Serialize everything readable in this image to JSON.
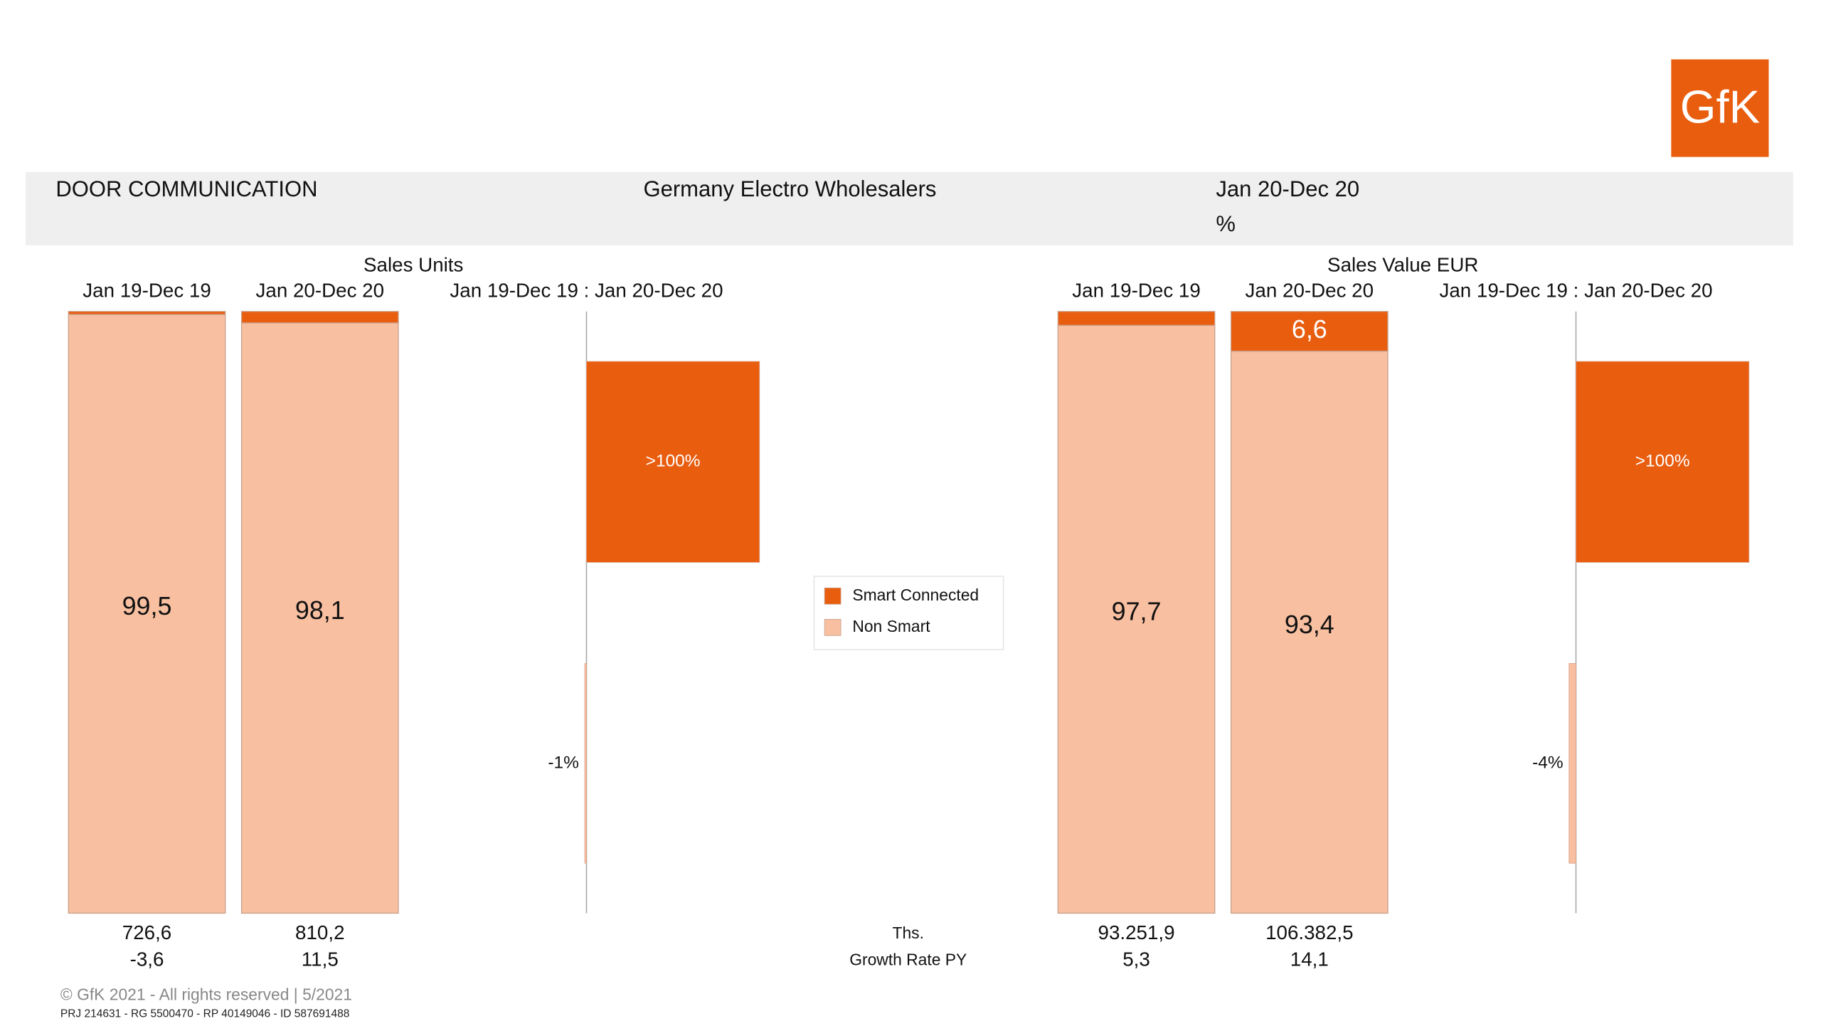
{
  "header": {
    "title": "DOOR COMMUNICATION",
    "market": "Germany Electro Wholesalers",
    "period": "Jan 20-Dec 20",
    "unit": "%"
  },
  "logo": "GfK",
  "row_labels": {
    "totals": "Ths.",
    "growth_py": "Growth Rate PY"
  },
  "footer": {
    "copyright": "© GfK 2021 - All rights reserved | 5/2021",
    "ids": "PRJ 214631 - RG 5500470 - RP 40149046 - ID 587691488"
  },
  "chart_data": [
    {
      "type": "stacked_bar",
      "title": "Sales Units",
      "categories": [
        "Jan 19-Dec 19",
        "Jan 20-Dec 20"
      ],
      "series": [
        {
          "name": "Smart Connected",
          "color": "#e95d0f",
          "values": [
            0.5,
            1.9
          ],
          "value_labels": [
            null,
            null
          ]
        },
        {
          "name": "Non Smart",
          "color": "#f8bfa0",
          "values": [
            99.5,
            98.1
          ],
          "value_labels": [
            "99,5",
            "98,1"
          ]
        }
      ],
      "totals": {
        "values": [
          726.6,
          810.2
        ],
        "value_labels": [
          "726,6",
          "810,2"
        ]
      },
      "growth_py": {
        "values": [
          -3.6,
          11.5
        ],
        "value_labels": [
          "-3,6",
          "11,5"
        ]
      },
      "growth": {
        "label": "Jan 19-Dec 19 : Jan 20-Dec 20",
        "values": [
          100,
          -1
        ],
        "value_labels": [
          ">100%",
          "-1%"
        ]
      }
    },
    {
      "type": "stacked_bar",
      "title": "Sales Value EUR",
      "categories": [
        "Jan 19-Dec 19",
        "Jan 20-Dec 20"
      ],
      "series": [
        {
          "color": "#e95d0f",
          "values": [
            2.3,
            6.6
          ],
          "value_labels": [
            null,
            "6,6"
          ]
        },
        {
          "color": "#f8bfa0",
          "values": [
            97.7,
            93.4
          ],
          "value_labels": [
            "97,7",
            "93,4"
          ]
        }
      ],
      "totals": {
        "values": [
          93251.9,
          106382.5
        ],
        "value_labels": [
          "93.251,9",
          "106.382,5"
        ]
      },
      "growth_py": {
        "values": [
          5.3,
          14.1
        ],
        "value_labels": [
          "5,3",
          "14,1"
        ]
      },
      "growth": {
        "label": "Jan 19-Dec 19 : Jan 20-Dec 20",
        "values": [
          100,
          -4
        ],
        "value_labels": [
          ">100%",
          "-4%"
        ]
      }
    }
  ]
}
